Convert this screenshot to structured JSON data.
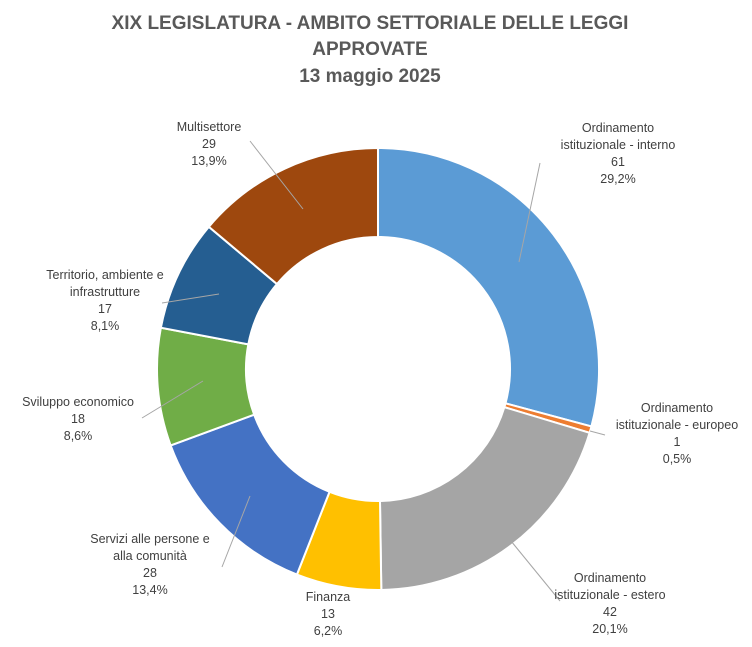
{
  "chart_data": {
    "type": "pie",
    "variant": "doughnut",
    "title_lines": [
      "XIX LEGISLATURA - AMBITO SETTORIALE DELLE LEGGI",
      "APPROVATE",
      "13 maggio 2025"
    ],
    "slices": [
      {
        "name_lines": [
          "Ordinamento",
          "istituzionale - interno"
        ],
        "value": 61,
        "value_label": "61",
        "pct_label": "29,2%",
        "color": "#5b9bd5"
      },
      {
        "name_lines": [
          "Ordinamento",
          "istituzionale - europeo"
        ],
        "value": 1,
        "value_label": "1",
        "pct_label": "0,5%",
        "color": "#ed7d31"
      },
      {
        "name_lines": [
          "Ordinamento",
          "istituzionale - estero"
        ],
        "value": 42,
        "value_label": "42",
        "pct_label": "20,1%",
        "color": "#a5a5a5"
      },
      {
        "name_lines": [
          "Finanza"
        ],
        "value": 13,
        "value_label": "13",
        "pct_label": "6,2%",
        "color": "#ffc000"
      },
      {
        "name_lines": [
          "Servizi alle persone e",
          "alla comunità"
        ],
        "value": 28,
        "value_label": "28",
        "pct_label": "13,4%",
        "color": "#4472c4"
      },
      {
        "name_lines": [
          "Sviluppo economico"
        ],
        "value": 18,
        "value_label": "18",
        "pct_label": "8,6%",
        "color": "#70ad47"
      },
      {
        "name_lines": [
          "Territorio, ambiente e",
          "infrastrutture"
        ],
        "value": 17,
        "value_label": "17",
        "pct_label": "8,1%",
        "color": "#255e91"
      },
      {
        "name_lines": [
          "Multisettore"
        ],
        "value": 29,
        "value_label": "29",
        "pct_label": "13,9%",
        "color": "#9e480e"
      }
    ]
  }
}
